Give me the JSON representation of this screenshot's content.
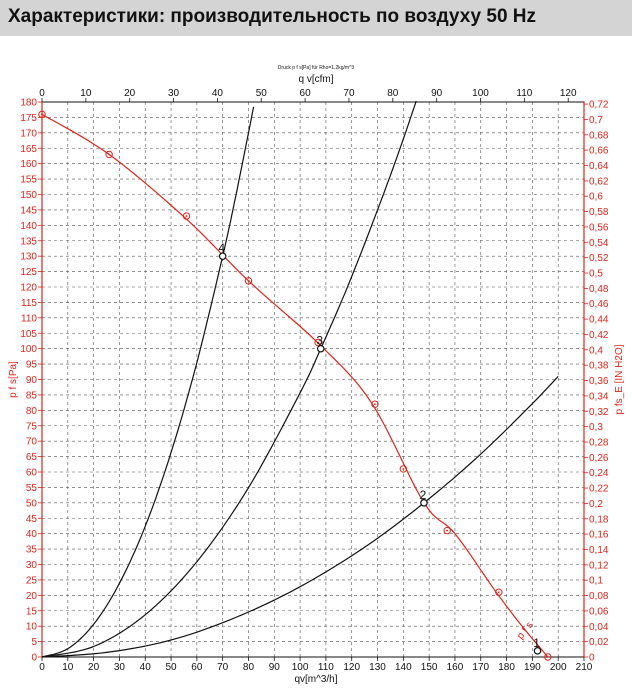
{
  "header": {
    "title": "Характеристики: производительность по воздуху 50 Hz"
  },
  "chart_data": {
    "type": "line",
    "subtitle": "Druck p f s[Pa] für Rho=1,2kg/m^3",
    "xlabel_bottom": "qv[m^3/h]",
    "xlabel_top": "q v[cfm]",
    "ylabel_left": "p f s[Pa]",
    "ylabel_right": "p fs_E [IN H2O]",
    "xlim": [
      0,
      210
    ],
    "ylim": [
      0,
      180
    ],
    "top_xlim": [
      0,
      123.6
    ],
    "right_ylim": [
      0,
      0.7227
    ],
    "x_ticks": [
      0,
      10,
      20,
      30,
      40,
      50,
      60,
      70,
      80,
      90,
      100,
      110,
      120,
      130,
      140,
      150,
      160,
      170,
      180,
      190,
      200,
      210
    ],
    "y_ticks": [
      0,
      5,
      10,
      15,
      20,
      25,
      30,
      35,
      40,
      45,
      50,
      55,
      60,
      65,
      70,
      75,
      80,
      85,
      90,
      95,
      100,
      105,
      110,
      115,
      120,
      125,
      130,
      135,
      140,
      145,
      150,
      155,
      160,
      165,
      170,
      175,
      180
    ],
    "top_ticks": [
      0,
      10,
      20,
      30,
      40,
      50,
      60,
      70,
      80,
      90,
      100,
      110,
      120
    ],
    "right_ticks": [
      "0",
      "0,02",
      "0,04",
      "0,06",
      "0,08",
      "0,1",
      "0,12",
      "0,14",
      "0,16",
      "0,18",
      "0,2",
      "0,22",
      "0,24",
      "0,26",
      "0,28",
      "0,3",
      "0,32",
      "0,34",
      "0,36",
      "0,38",
      "0,4",
      "0,42",
      "0,44",
      "0,46",
      "0,48",
      "0,5",
      "0,52",
      "0,54",
      "0,56",
      "0,58",
      "0,6",
      "0,62",
      "0,64",
      "0,66",
      "0,68",
      "0,7",
      "0,72"
    ],
    "grid": true,
    "colors": {
      "fan_curve": "#e0241b",
      "system_curve": "#111111",
      "axis_primary": "#e0241b",
      "axis_secondary": "#111111"
    },
    "fan_curve": {
      "label": "p f s",
      "x": [
        0,
        26,
        56,
        80,
        108,
        128,
        148,
        160,
        176,
        186,
        196
      ],
      "y": [
        176,
        163,
        142,
        122,
        101,
        82,
        50,
        40,
        21,
        10,
        0
      ],
      "markers_x": [
        0,
        26,
        56,
        80,
        107,
        129,
        140,
        157,
        177,
        196
      ],
      "markers_y": [
        176,
        163,
        143,
        122,
        102,
        82,
        61,
        41,
        21,
        0
      ]
    },
    "system_curves": [
      {
        "label": "2",
        "x": [
          0,
          25,
          50,
          75,
          100,
          125,
          148,
          170,
          190,
          200
        ],
        "y": [
          0,
          1.5,
          5.5,
          12.8,
          22.8,
          35.6,
          50,
          65.8,
          82.2,
          91
        ]
      },
      {
        "label": "3",
        "x": [
          0,
          20,
          40,
          60,
          80,
          100,
          108,
          120,
          135,
          145
        ],
        "y": [
          0,
          3.4,
          13.7,
          30.9,
          54.9,
          85.7,
          100,
          123.4,
          156.2,
          180.3
        ]
      },
      {
        "label": "4",
        "x": [
          0,
          10,
          20,
          30,
          40,
          50,
          60,
          70,
          75,
          82
        ],
        "y": [
          0,
          2.7,
          10.6,
          23.9,
          42.4,
          66.3,
          95.5,
          130,
          149.2,
          178.4
        ]
      }
    ],
    "operating_points": [
      {
        "label": "2",
        "x": 148,
        "y": 50
      },
      {
        "label": "3",
        "x": 108,
        "y": 100
      },
      {
        "label": "4",
        "x": 70,
        "y": 130
      },
      {
        "label": "1",
        "x": 192,
        "y": 2
      }
    ]
  }
}
